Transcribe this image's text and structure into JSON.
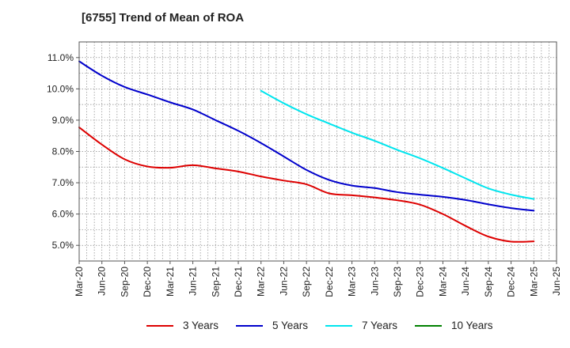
{
  "chart_data": {
    "type": "line",
    "title": "[6755]  Trend of Mean of ROA",
    "xlabel": "",
    "ylabel": "",
    "y_format": "percent_1dp",
    "ylim": [
      4.5,
      11.5
    ],
    "yticks": [
      5.0,
      6.0,
      7.0,
      8.0,
      9.0,
      10.0,
      11.0
    ],
    "ytick_labels": [
      "5.0%",
      "6.0%",
      "7.0%",
      "8.0%",
      "9.0%",
      "10.0%",
      "11.0%"
    ],
    "x_categories": [
      "Mar-20",
      "Jun-20",
      "Sep-20",
      "Dec-20",
      "Mar-21",
      "Jun-21",
      "Sep-21",
      "Dec-21",
      "Mar-22",
      "Jun-22",
      "Sep-22",
      "Dec-22",
      "Mar-23",
      "Jun-23",
      "Sep-23",
      "Dec-23",
      "Mar-24",
      "Jun-24",
      "Sep-24",
      "Dec-24",
      "Mar-25",
      "Jun-25"
    ],
    "grid": true,
    "legend_position": "bottom",
    "series": [
      {
        "name": "3 Years",
        "color": "#dd0000",
        "values": [
          8.77,
          8.22,
          7.75,
          7.52,
          7.48,
          7.56,
          7.46,
          7.36,
          7.2,
          7.07,
          6.95,
          6.66,
          6.6,
          6.53,
          6.44,
          6.3,
          6.0,
          5.62,
          5.28,
          5.12,
          5.13,
          null
        ]
      },
      {
        "name": "5 Years",
        "color": "#0000cc",
        "values": [
          10.88,
          10.42,
          10.06,
          9.82,
          9.57,
          9.34,
          9.0,
          8.66,
          8.27,
          7.84,
          7.41,
          7.09,
          6.91,
          6.83,
          6.7,
          6.62,
          6.55,
          6.45,
          6.31,
          6.19,
          6.11,
          null
        ]
      },
      {
        "name": "7 Years",
        "color": "#00e5ee",
        "values": [
          null,
          null,
          null,
          null,
          null,
          null,
          null,
          null,
          9.94,
          9.54,
          9.19,
          8.89,
          8.6,
          8.34,
          8.05,
          7.78,
          7.47,
          7.14,
          6.82,
          6.62,
          6.48,
          null
        ]
      },
      {
        "name": "10 Years",
        "color": "#008000",
        "values": [
          null,
          null,
          null,
          null,
          null,
          null,
          null,
          null,
          null,
          null,
          null,
          null,
          null,
          null,
          null,
          null,
          null,
          null,
          null,
          null,
          null,
          null
        ]
      }
    ]
  }
}
